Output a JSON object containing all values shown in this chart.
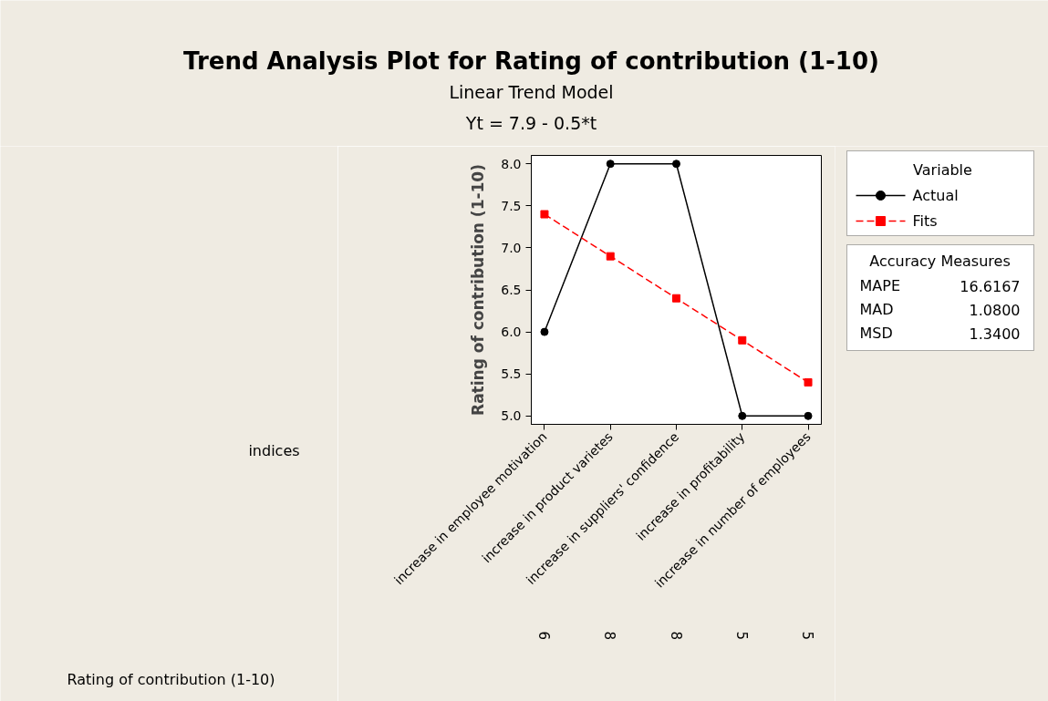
{
  "chart_data": {
    "type": "line",
    "title": "Trend Analysis Plot for Rating of contribution (1-10)",
    "subtitle": "Linear Trend Model",
    "ylabel": "Rating of contribution (1-10)",
    "legend_title": "Variable",
    "legend": "top right",
    "categories": [
      "increase in employee motivation",
      "increase in product varietes",
      "increase in suppliers' confidence",
      "increase in profitability",
      "increase in number of employees"
    ],
    "series": [
      {
        "name": "Actual",
        "color": "#000000",
        "values": [
          6,
          8,
          8,
          5,
          5
        ],
        "marker": "circle",
        "line_style": "solid",
        "value_labels": [
          "6",
          "8",
          "8",
          "5",
          "5"
        ]
      },
      {
        "name": "Fits",
        "color": "#ff0000",
        "values": [
          7.4,
          6.9,
          6.4,
          5.9,
          5.4
        ],
        "marker": "square",
        "line_style": "dashed"
      }
    ],
    "ylim": [
      4.9,
      8.1
    ],
    "yticks": [
      {
        "value": 5,
        "label": "5.0"
      },
      {
        "value": 5.5,
        "label": "5.5"
      },
      {
        "value": 6,
        "label": "6.0"
      },
      {
        "value": 6.5,
        "label": "6.5"
      },
      {
        "value": 7,
        "label": "7.0"
      },
      {
        "value": 7.5,
        "label": "7.5"
      },
      {
        "value": 8,
        "label": "8.0"
      }
    ],
    "grid": false,
    "annotations": [
      "indices",
      "Yt = 7.9 - 0.5*t",
      "Accuracy Measures",
      "MAPE",
      "16.6167",
      "MAD",
      "1.0800",
      "MSD",
      "1.3400",
      "Rating of contribution (1-10)"
    ]
  }
}
